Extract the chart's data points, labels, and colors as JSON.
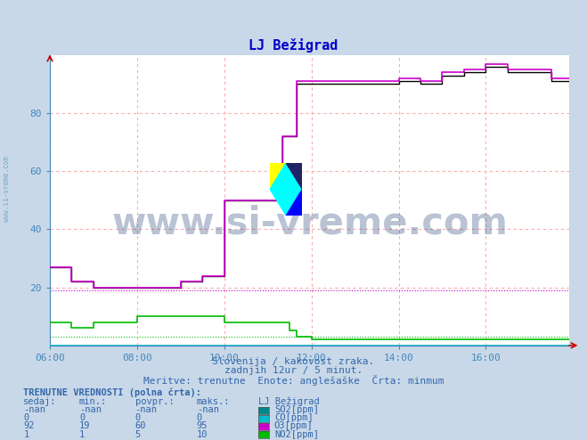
{
  "title": "LJ Bežigrad",
  "title_color": "#0000cc",
  "fig_bg": "#c8d8e8",
  "plot_bg": "#ffffff",
  "grid_color": "#ffaaaa",
  "axis_color": "#4488bb",
  "text_color": "#3366aa",
  "so2_color": "#008888",
  "co_color": "#00bbcc",
  "o3_color": "#cc00cc",
  "no2_color": "#00bb00",
  "black_line_color": "#000000",
  "o3_min": 19,
  "no2_min": 3,
  "xlim_n": 144,
  "ylim_max": 100,
  "ytick_vals": [
    20,
    40,
    60,
    80
  ],
  "xtick_pos": [
    0,
    24,
    48,
    72,
    96,
    120
  ],
  "xtick_labels": [
    "06:00",
    "08:00",
    "10:00",
    "12:00",
    "14:00",
    "16:00"
  ],
  "subtitle1": "Slovenija / kakovost zraka.",
  "subtitle2": "zadnjih 12ur / 5 minut.",
  "subtitle3": "Meritve: trenutne  Enote: anglešaške  Črta: minmum",
  "table_header": "TRENUTNE VREDNOSTI (polna črta):",
  "col_headers": [
    "sedaj:",
    "min.:",
    "povpr.:",
    "maks.:",
    "LJ Bežigrad"
  ],
  "rows": [
    [
      "-nan",
      "-nan",
      "-nan",
      "-nan",
      "SO2[ppm]"
    ],
    [
      "0",
      "0",
      "0",
      "0",
      "CO[ppm]"
    ],
    [
      "92",
      "19",
      "60",
      "95",
      "O3[ppm]"
    ],
    [
      "1",
      "1",
      "5",
      "10",
      "NO2[ppm]"
    ]
  ],
  "legend_colors": [
    "#008888",
    "#00bbcc",
    "#cc00cc",
    "#00bb00"
  ],
  "watermark": "www.si-vreme.com",
  "watermark_color": "#1a3a6e",
  "watermark_alpha": 0.3,
  "side_label": "www.si-vreme.com",
  "arrow_color": "#cc0000"
}
